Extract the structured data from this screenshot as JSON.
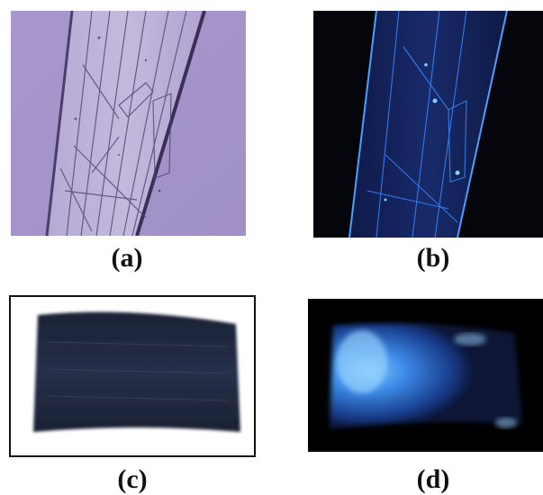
{
  "figure": {
    "panels": [
      {
        "id": "a",
        "caption": "(a)",
        "description_color": "#a394c9"
      },
      {
        "id": "b",
        "caption": "(b)",
        "description_color": "#0a0a14"
      },
      {
        "id": "c",
        "caption": "(c)",
        "description_color": "#ffffff"
      },
      {
        "id": "d",
        "caption": "(d)",
        "description_color": "#000000"
      }
    ]
  }
}
